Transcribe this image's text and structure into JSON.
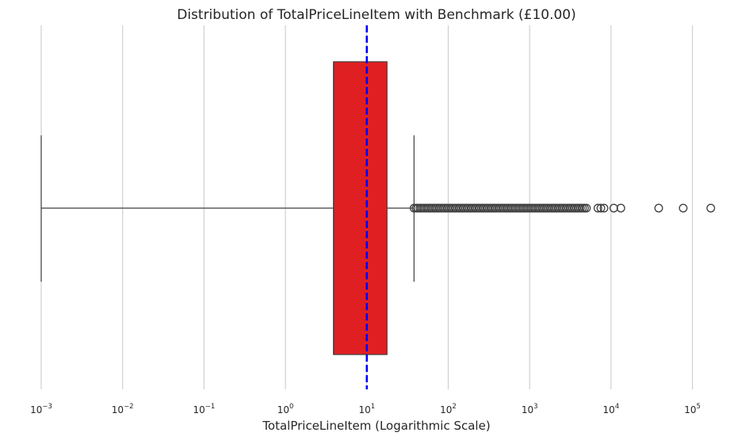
{
  "chart_data": {
    "type": "boxplot",
    "title": "Distribution of TotalPriceLineItem with Benchmark (£10.00)",
    "xlabel": "TotalPriceLineItem (Logarithmic Scale)",
    "xscale": "log",
    "xlim": [
      0.001,
      250000
    ],
    "xticks": [
      {
        "base": "10",
        "exp": "−3",
        "value": 0.001
      },
      {
        "base": "10",
        "exp": "−2",
        "value": 0.01
      },
      {
        "base": "10",
        "exp": "−1",
        "value": 0.1
      },
      {
        "base": "10",
        "exp": "0",
        "value": 1
      },
      {
        "base": "10",
        "exp": "1",
        "value": 10
      },
      {
        "base": "10",
        "exp": "2",
        "value": 100
      },
      {
        "base": "10",
        "exp": "3",
        "value": 1000
      },
      {
        "base": "10",
        "exp": "4",
        "value": 10000
      },
      {
        "base": "10",
        "exp": "5",
        "value": 100000
      }
    ],
    "grid": "vertical",
    "box": {
      "whisker_low": 0.001,
      "q1": 3.9,
      "median": 3.9,
      "q3": 17.7,
      "whisker_high": 38,
      "color": "#e01f22"
    },
    "benchmark": {
      "value": 10,
      "color": "#0000ff"
    },
    "outliers_dense_range": [
      38,
      5200
    ],
    "outliers": [
      6900,
      7500,
      8200,
      10800,
      13200,
      38500,
      77000,
      168000
    ]
  }
}
